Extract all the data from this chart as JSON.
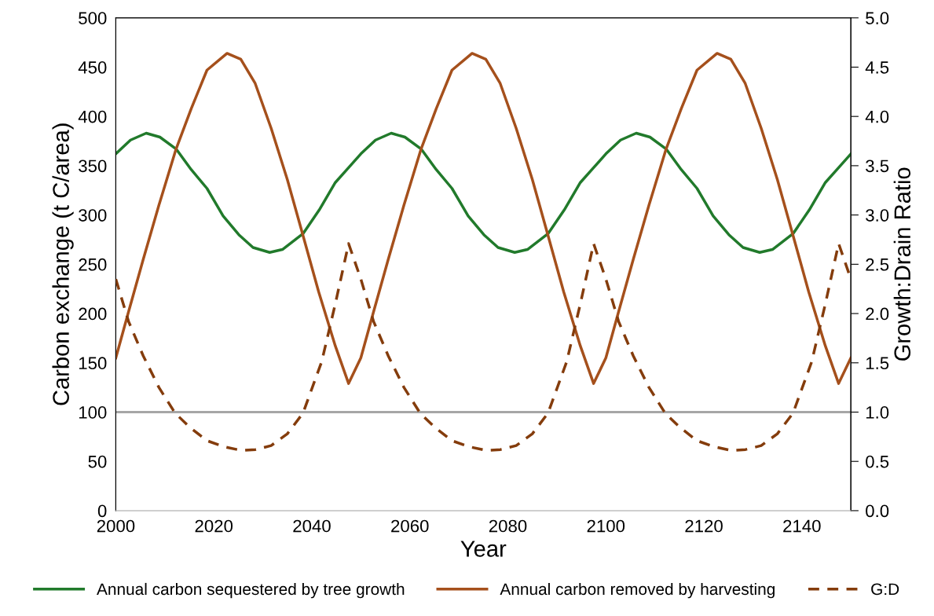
{
  "chart_data": {
    "type": "line",
    "xlabel": "Year",
    "ylabel": "Carbon exchange (t C/area)",
    "y2label": "Growth:Drain Ratio",
    "xlim": [
      2000,
      2150
    ],
    "xticks": [
      2000,
      2020,
      2040,
      2060,
      2080,
      2100,
      2120,
      2140
    ],
    "ylim": [
      0,
      500
    ],
    "yticks": [
      0,
      50,
      100,
      150,
      200,
      250,
      300,
      350,
      400,
      450,
      500
    ],
    "y2lim": [
      0,
      5
    ],
    "y2ticks": [
      {
        "value": 0,
        "label": "0.0"
      },
      {
        "value": 0.5,
        "label": "0.5"
      },
      {
        "value": 1,
        "label": "1.0"
      },
      {
        "value": 1.5,
        "label": "1.5"
      },
      {
        "value": 2,
        "label": "2.0"
      },
      {
        "value": 2.5,
        "label": "2.5"
      },
      {
        "value": 3,
        "label": "3.0"
      },
      {
        "value": 3.5,
        "label": "3.5"
      },
      {
        "value": 4,
        "label": "4.0"
      },
      {
        "value": 4.5,
        "label": "4.5"
      },
      {
        "value": 5,
        "label": "5.0"
      }
    ],
    "grid": false,
    "legend": "bottom",
    "ref_lines": [
      {
        "axis": "y",
        "value": 100,
        "color": "#a6a6a6",
        "line_style": "solid"
      }
    ],
    "series": [
      {
        "name": "Annual carbon sequestered by tree growth",
        "color": "#217a2b",
        "line_style": "solid",
        "x": [
          2000,
          2003,
          2006.2,
          2009,
          2012.3,
          2015.4,
          2018.6,
          2021.9,
          2025.1,
          2028,
          2031.4,
          2034,
          2038.2,
          2041.5,
          2044.8,
          2047.5,
          2050,
          2053,
          2056.2,
          2059,
          2062.3,
          2065.4,
          2068.6,
          2071.9,
          2075.1,
          2078,
          2081.4,
          2084,
          2088.2,
          2091.5,
          2094.8,
          2097.5,
          2100,
          2103,
          2106.2,
          2109,
          2112.3,
          2115.4,
          2118.6,
          2121.9,
          2125.1,
          2128,
          2131.4,
          2134,
          2138.2,
          2141.5,
          2144.8,
          2147.5,
          2150
        ],
        "values": [
          362,
          376,
          383,
          379,
          367,
          346,
          327,
          299,
          280,
          267,
          262,
          265,
          281,
          305,
          333,
          348,
          362,
          376,
          383,
          379,
          367,
          346,
          327,
          299,
          280,
          267,
          262,
          265,
          281,
          305,
          333,
          348,
          362,
          376,
          383,
          379,
          367,
          346,
          327,
          299,
          280,
          267,
          262,
          265,
          281,
          305,
          333,
          348,
          362
        ]
      },
      {
        "name": "Annual carbon removed by harvesting",
        "color": "#a5501c",
        "line_style": "solid",
        "x": [
          2000,
          2002.5,
          2005.6,
          2008.8,
          2012.3,
          2015.4,
          2018.6,
          2022.7,
          2025.5,
          2028.4,
          2031.7,
          2035,
          2038.1,
          2041.4,
          2044.8,
          2047.5,
          2050,
          2052.5,
          2055.6,
          2058.8,
          2062.3,
          2065.4,
          2068.6,
          2072.7,
          2075.5,
          2078.4,
          2081.7,
          2085,
          2088.1,
          2091.4,
          2094.8,
          2097.5,
          2100,
          2102.5,
          2105.6,
          2108.8,
          2112.3,
          2115.4,
          2118.6,
          2122.7,
          2125.5,
          2128.4,
          2131.7,
          2135,
          2138.1,
          2141.4,
          2144.8,
          2147.5,
          2150
        ],
        "values": [
          155,
          200,
          255,
          310,
          367,
          408,
          447,
          464,
          458,
          434,
          388,
          336,
          281,
          222,
          167,
          129,
          155,
          200,
          255,
          310,
          367,
          408,
          447,
          464,
          458,
          434,
          388,
          336,
          281,
          222,
          167,
          129,
          155,
          200,
          255,
          310,
          367,
          408,
          447,
          464,
          458,
          434,
          388,
          336,
          281,
          222,
          167,
          129,
          155
        ]
      },
      {
        "name": "G:D",
        "color": "#843c0c",
        "line_style": "dashed",
        "axis": "y2",
        "x": [
          2000,
          2002.6,
          2005.6,
          2008.8,
          2012.1,
          2015,
          2018.6,
          2022,
          2025.7,
          2028.5,
          2031.7,
          2035,
          2038.2,
          2042,
          2044.8,
          2047.5,
          2050,
          2052.6,
          2055.6,
          2058.8,
          2062.1,
          2065,
          2068.6,
          2072,
          2075.7,
          2078.5,
          2081.7,
          2085,
          2088.2,
          2092,
          2094.8,
          2097.5,
          2100,
          2102.6,
          2105.6,
          2108.8,
          2112.1,
          2115,
          2118.6,
          2122,
          2125.7,
          2128.5,
          2131.7,
          2135,
          2138.2,
          2142,
          2144.8,
          2147.5,
          2150
        ],
        "values": [
          2.35,
          1.92,
          1.57,
          1.25,
          0.99,
          0.85,
          0.71,
          0.65,
          0.61,
          0.62,
          0.66,
          0.78,
          0.99,
          1.51,
          2.1,
          2.71,
          2.35,
          1.92,
          1.57,
          1.25,
          0.99,
          0.85,
          0.71,
          0.65,
          0.61,
          0.62,
          0.66,
          0.78,
          0.99,
          1.51,
          2.1,
          2.71,
          2.35,
          1.92,
          1.57,
          1.25,
          0.99,
          0.85,
          0.71,
          0.65,
          0.61,
          0.62,
          0.66,
          0.78,
          0.99,
          1.51,
          2.1,
          2.71,
          2.35
        ]
      }
    ]
  }
}
